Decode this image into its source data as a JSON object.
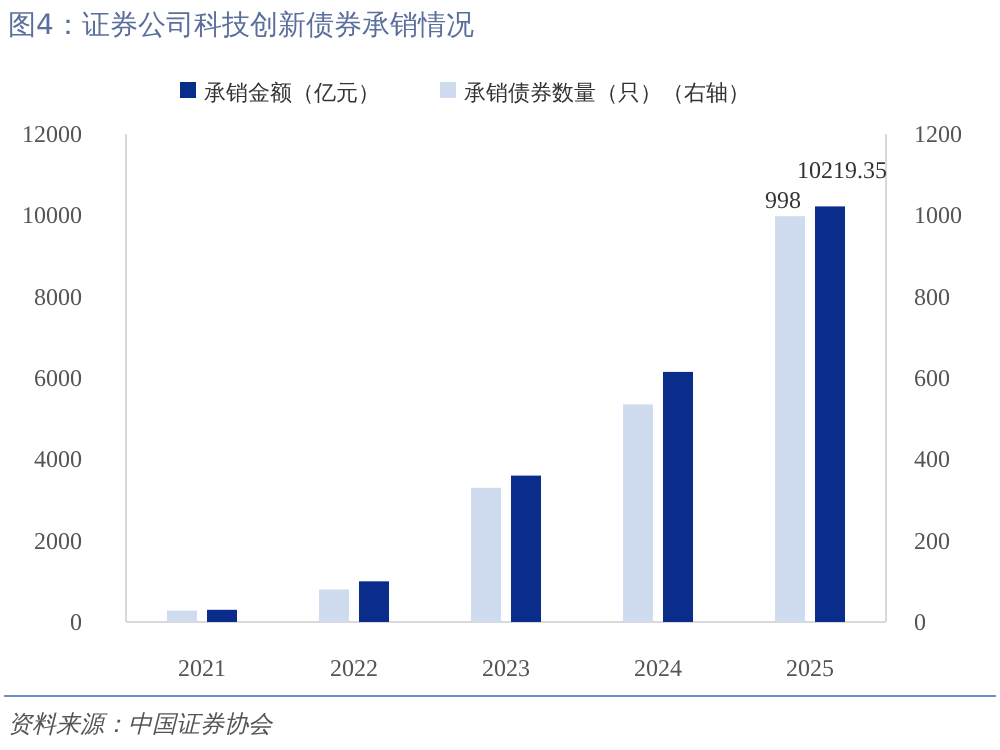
{
  "chart_data": {
    "type": "bar",
    "title": "图4：证券公司科技创新债券承销情况",
    "categories": [
      "2021",
      "2022",
      "2023",
      "2024",
      "2025"
    ],
    "series": [
      {
        "name": "承销债券数量（只）（右轴）",
        "color": "#cfdcef",
        "axis": "y2",
        "values": [
          28,
          80,
          330,
          535,
          998
        ],
        "value_labels": [
          null,
          null,
          null,
          null,
          "998"
        ]
      },
      {
        "name": "承销金额（亿元）",
        "color": "#0a2d8c",
        "values": [
          300,
          1000,
          3600,
          6150,
          10219.35
        ],
        "value_labels": [
          null,
          null,
          null,
          null,
          "10219.35"
        ]
      }
    ],
    "ylim": [
      0,
      12000
    ],
    "yticks": [
      0,
      2000,
      4000,
      6000,
      8000,
      10000,
      12000
    ],
    "y2lim": [
      0,
      1200
    ],
    "y2ticks": [
      0,
      200,
      400,
      600,
      800,
      1000,
      1200
    ],
    "legend": "top",
    "grid": false,
    "annotations": [
      "资料来源：中国证券协会"
    ]
  }
}
